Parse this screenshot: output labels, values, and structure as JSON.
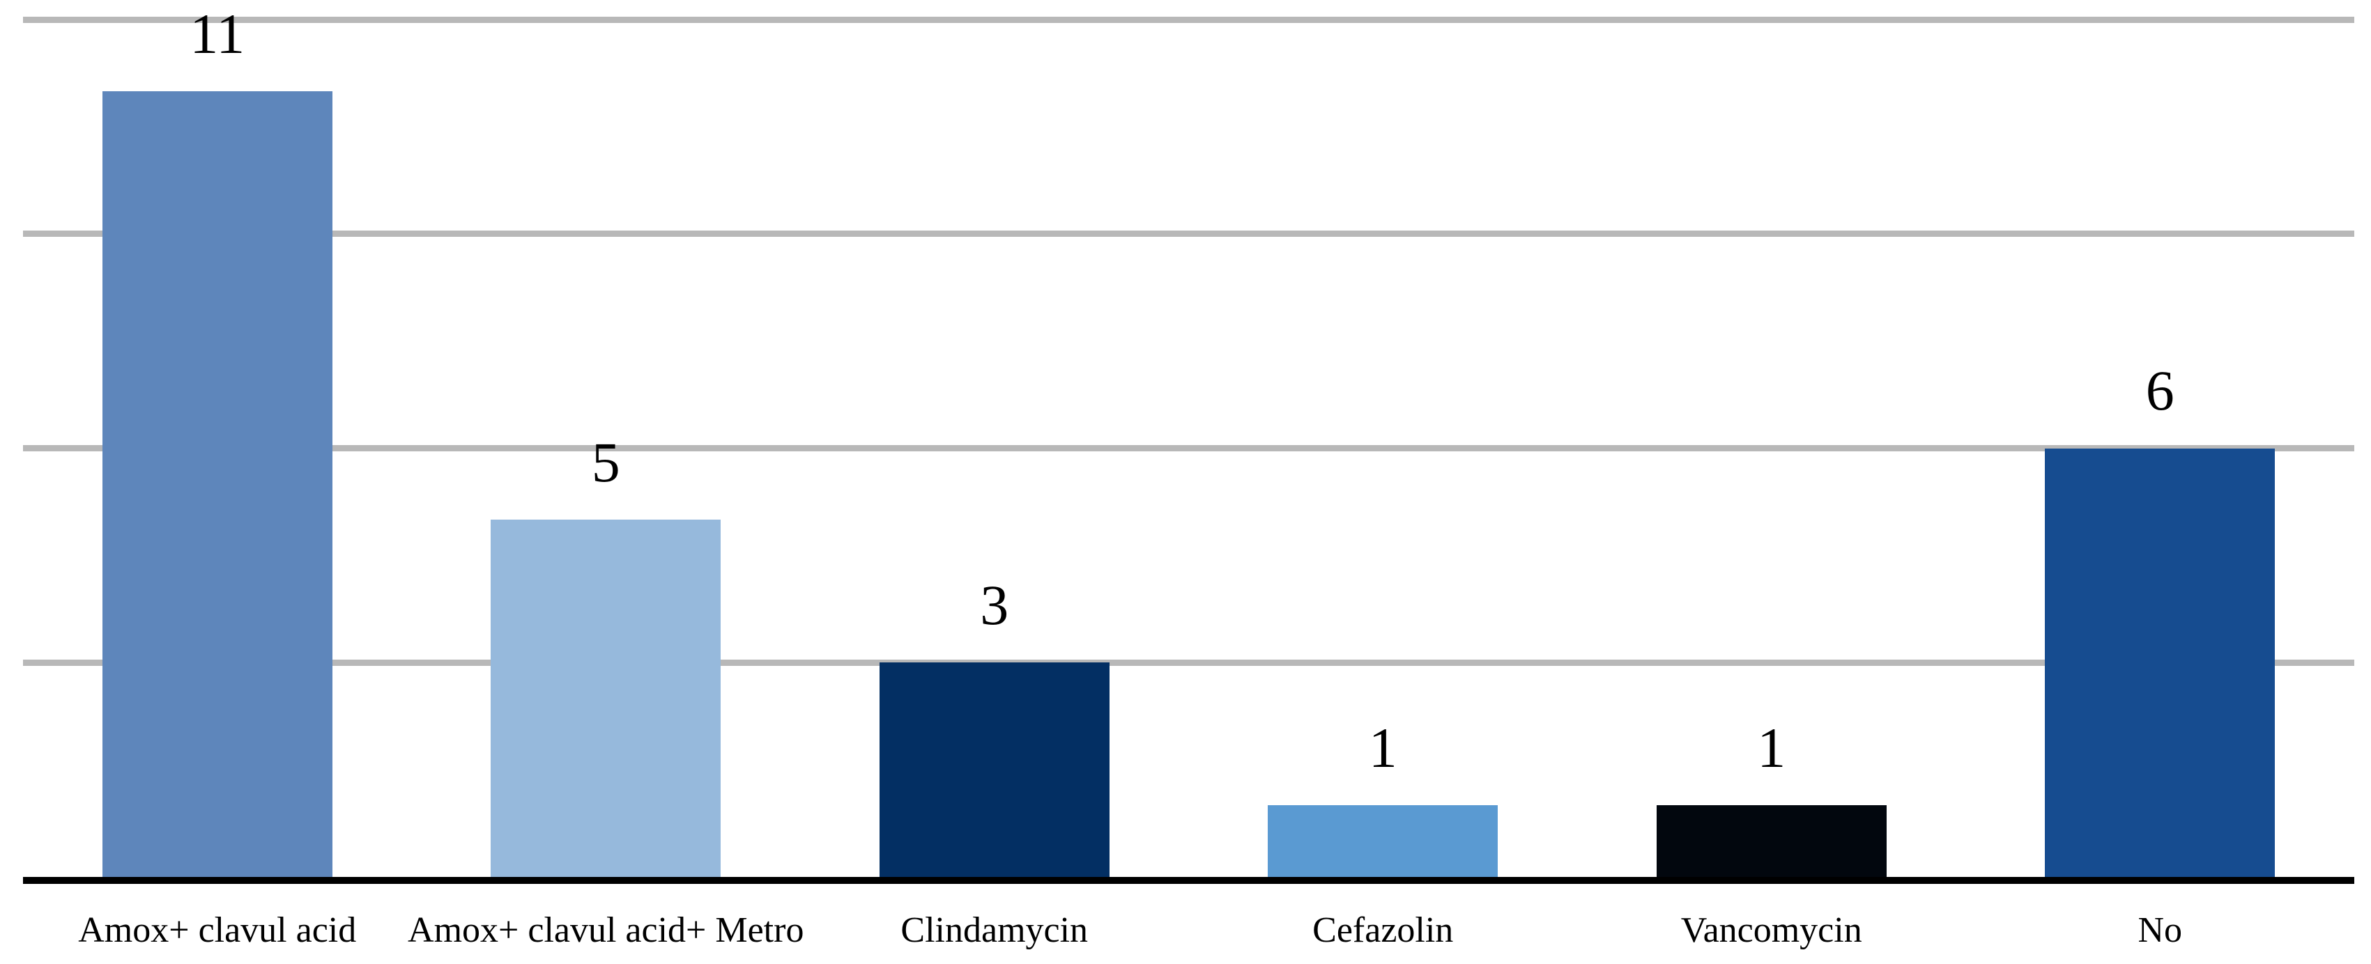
{
  "chart_data": {
    "type": "bar",
    "title": "",
    "xlabel": "",
    "ylabel": "",
    "categories": [
      "Amox+ clavul acid",
      "Amox+ clavul acid+ Metro",
      "Clindamycin",
      "Cefazolin",
      "Vancomycin",
      "No"
    ],
    "values": [
      11,
      5,
      3,
      1,
      1,
      6
    ],
    "bar_colors": [
      "#5E86BB",
      "#96B9DC",
      "#032F63",
      "#5A9AD2",
      "#02070E",
      "#164C90"
    ],
    "data_labels_shown": true,
    "ylim": [
      0,
      12
    ],
    "y_axis_labels_shown": false,
    "gridlines": {
      "values": [
        3,
        6,
        9,
        12
      ],
      "color": "#B8B8B8"
    },
    "axis_line_color": "#000000",
    "text_color": "#000000",
    "background": "#FFFFFF",
    "legend_position": "none",
    "grid": "horizontal"
  }
}
